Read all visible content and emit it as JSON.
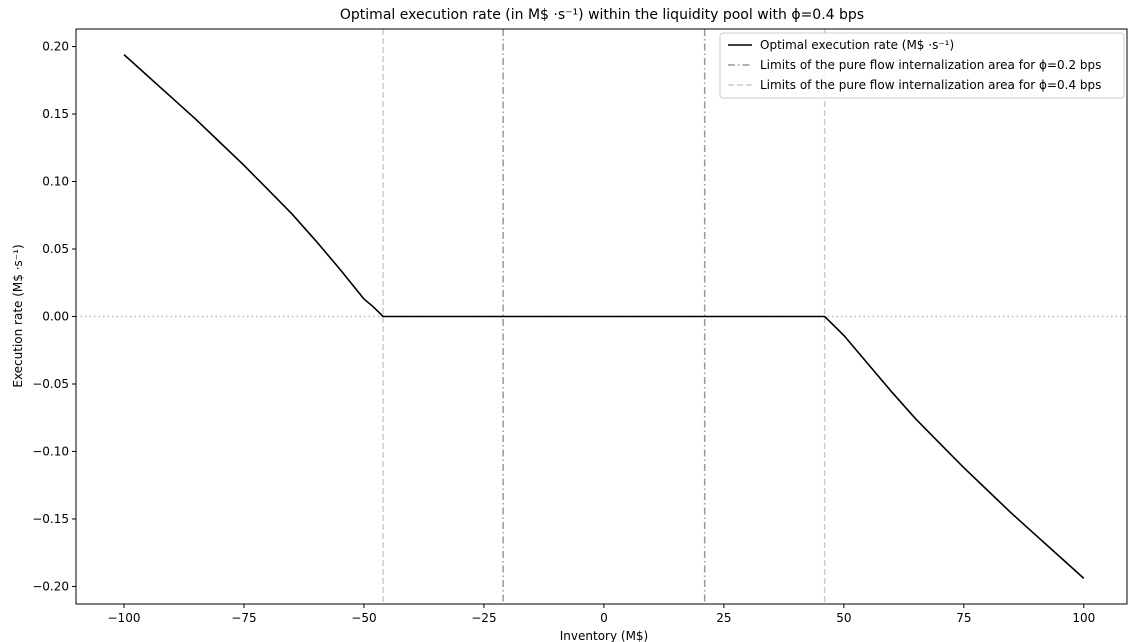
{
  "chart_data": {
    "type": "line",
    "title": "Optimal execution rate (in M$ ·s⁻¹) within the liquidity pool with ϕ=0.4 bps",
    "xlabel": "Inventory (M$)",
    "ylabel": "Execution rate (M$ ·s⁻¹)",
    "xlim": [
      -110,
      109
    ],
    "ylim": [
      -0.213,
      0.213
    ],
    "xticks": [
      -100,
      -75,
      -50,
      -25,
      0,
      25,
      50,
      75,
      100
    ],
    "xtick_labels": [
      "−100",
      "−75",
      "−50",
      "−25",
      "0",
      "25",
      "50",
      "75",
      "100"
    ],
    "yticks": [
      0.2,
      0.15,
      0.1,
      0.05,
      0.0,
      -0.05,
      -0.1,
      -0.15,
      -0.2
    ],
    "ytick_labels": [
      "0.20",
      "0.15",
      "0.10",
      "0.05",
      "0.00",
      "−0.05",
      "−0.10",
      "−0.15",
      "−0.20"
    ],
    "grid": false,
    "legend_position": "top-right",
    "series": [
      {
        "name": "Optimal execution rate (M$ ·s⁻¹)",
        "color": "#000000",
        "style": "solid",
        "points": [
          [
            -100,
            0.194
          ],
          [
            -95,
            0.178
          ],
          [
            -90,
            0.162
          ],
          [
            -85,
            0.146
          ],
          [
            -80,
            0.129
          ],
          [
            -75,
            0.112
          ],
          [
            -70,
            0.094
          ],
          [
            -65,
            0.076
          ],
          [
            -60,
            0.056
          ],
          [
            -55,
            0.035
          ],
          [
            -50,
            0.013
          ],
          [
            -48,
            0.007
          ],
          [
            -46,
            0.0
          ],
          [
            46,
            0.0
          ],
          [
            48,
            -0.007
          ],
          [
            50,
            -0.014
          ],
          [
            55,
            -0.035
          ],
          [
            60,
            -0.056
          ],
          [
            65,
            -0.076
          ],
          [
            70,
            -0.094
          ],
          [
            75,
            -0.112
          ],
          [
            80,
            -0.129
          ],
          [
            85,
            -0.146
          ],
          [
            90,
            -0.162
          ],
          [
            95,
            -0.178
          ],
          [
            100,
            -0.194
          ]
        ]
      }
    ],
    "vertical_lines": [
      {
        "name": "Limits of the pure flow internalization area for ϕ=0.2 bps",
        "x": [
          -21,
          21
        ],
        "color": "#999999",
        "style": "dashdot"
      },
      {
        "name": "Limits of the pure flow internalization area for ϕ=0.4 bps",
        "x": [
          -46,
          46
        ],
        "color": "#cccccc",
        "style": "dashed"
      }
    ],
    "zero_line": {
      "y": 0,
      "color": "#bbbbbb",
      "style": "dotted"
    },
    "legend": [
      {
        "label": "Optimal execution rate (M$ ·s⁻¹)",
        "color": "#000000",
        "style": "solid"
      },
      {
        "label": "Limits of the pure flow internalization area for ϕ=0.2 bps",
        "color": "#999999",
        "style": "dashdot"
      },
      {
        "label": "Limits of the pure flow internalization area for ϕ=0.4 bps",
        "color": "#cccccc",
        "style": "dashed"
      }
    ]
  }
}
